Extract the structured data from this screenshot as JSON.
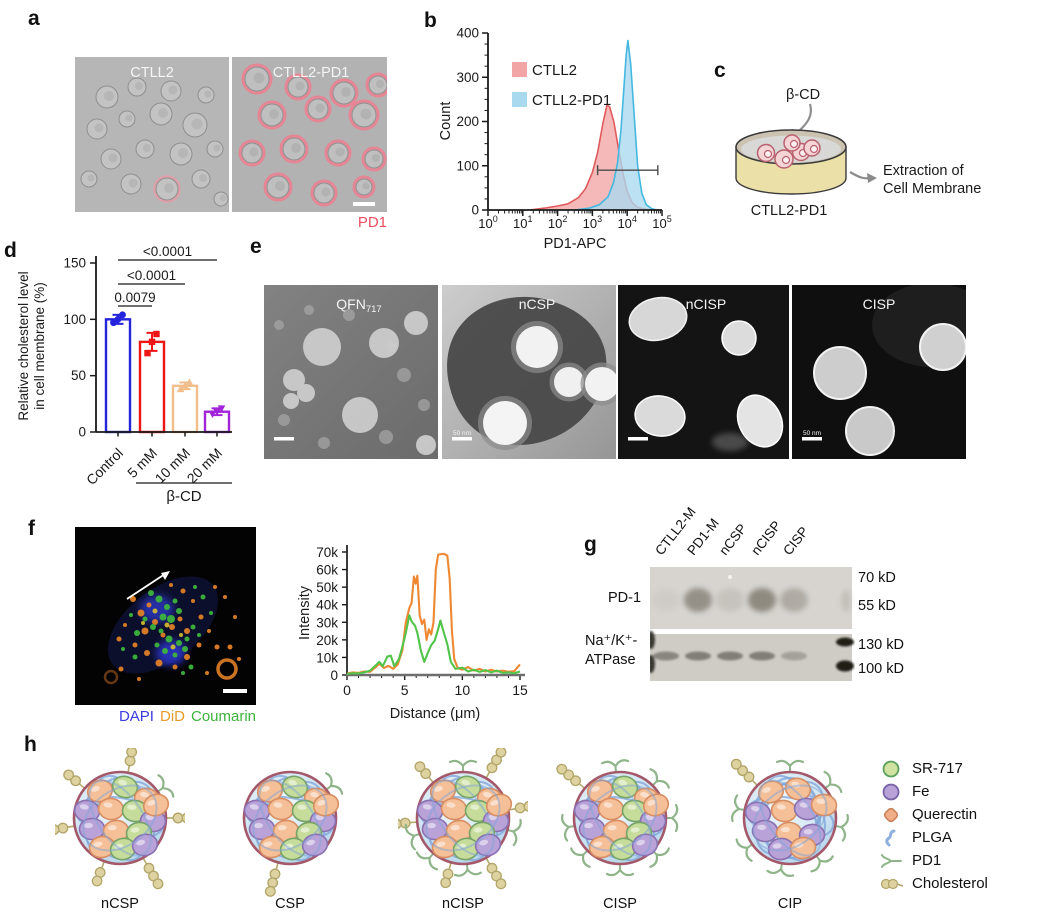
{
  "panels": {
    "a": {
      "label": "a",
      "images": [
        {
          "title": "CTLL2"
        },
        {
          "title": "CTLL2-PD1"
        }
      ],
      "caption": "PD1",
      "caption_color": "#ee4e60"
    },
    "b": {
      "label": "b"
    },
    "c": {
      "label": "c",
      "treatment": "β-CD",
      "dish": "CTLL2-PD1",
      "result_line1": "Extraction of",
      "result_line2": "Cell Membrane"
    },
    "d": {
      "label": "d"
    },
    "e": {
      "label": "e",
      "images": [
        {
          "title": "QFN",
          "title_sub": "717",
          "scale_label": ""
        },
        {
          "title": "nCSP",
          "title_sub": "",
          "scale_label": "50 nm"
        },
        {
          "title": "nCISP",
          "title_sub": "",
          "scale_label": ""
        },
        {
          "title": "CISP",
          "title_sub": "",
          "scale_label": "50 nm"
        }
      ]
    },
    "f": {
      "label": "f",
      "caption": [
        {
          "text": "DAPI",
          "color": "#3b3be0"
        },
        {
          "text": "DiD",
          "color": "#e69a28"
        },
        {
          "text": "Coumarin",
          "color": "#3cb43c"
        }
      ]
    },
    "g": {
      "label": "g",
      "lanes": [
        "CTLL2-M",
        "PD1-M",
        "nCSP",
        "nCISP",
        "CISP"
      ],
      "blots": [
        {
          "target": "PD-1",
          "markers": [
            "70 kD",
            "55 kD"
          ],
          "band_intensities": [
            0.05,
            0.5,
            0.12,
            0.55,
            0.3
          ]
        },
        {
          "target_line1": "Na⁺/K⁺-",
          "target_line2": "ATPase",
          "markers": [
            "130 kD",
            "100 kD"
          ],
          "band_intensities": [
            0.5,
            0.55,
            0.55,
            0.55,
            0.3
          ]
        }
      ]
    },
    "h": {
      "label": "h",
      "particles": [
        "nCSP",
        "CSP",
        "nCISP",
        "CISP",
        "CIP"
      ],
      "legend": [
        "SR-717",
        "Fe",
        "Querectin",
        "PLGA",
        "PD1",
        "Cholesterol"
      ]
    }
  },
  "chart_data": [
    {
      "id": "flow-histogram",
      "type": "area",
      "panel": "b",
      "xlabel": "PD1-APC",
      "ylabel": "Count",
      "x_scale": "log10",
      "xlim_log": [
        0,
        5
      ],
      "ylim": [
        0,
        400
      ],
      "yticks": [
        0,
        100,
        200,
        300,
        400
      ],
      "xtick_exponents": [
        0,
        1,
        2,
        3,
        4,
        5
      ],
      "legend_position": "upper-left",
      "series": [
        {
          "name": "CTLL2",
          "color_fill": "#f2a5a5",
          "color_line": "#e05a5e",
          "points_logx_count": [
            [
              1.2,
              0
            ],
            [
              1.6,
              4
            ],
            [
              2.0,
              9
            ],
            [
              2.3,
              14
            ],
            [
              2.6,
              28
            ],
            [
              2.8,
              48
            ],
            [
              3.0,
              85
            ],
            [
              3.15,
              130
            ],
            [
              3.3,
              195
            ],
            [
              3.42,
              238
            ],
            [
              3.5,
              232
            ],
            [
              3.62,
              198
            ],
            [
              3.75,
              138
            ],
            [
              3.88,
              82
            ],
            [
              4.0,
              42
            ],
            [
              4.15,
              16
            ],
            [
              4.3,
              6
            ],
            [
              4.5,
              2
            ],
            [
              4.7,
              0
            ]
          ]
        },
        {
          "name": "CTLL2-PD1",
          "color_fill": "#a9d9ee",
          "color_line": "#45b8e0",
          "points_logx_count": [
            [
              2.5,
              0
            ],
            [
              2.9,
              4
            ],
            [
              3.2,
              12
            ],
            [
              3.45,
              30
            ],
            [
              3.6,
              60
            ],
            [
              3.72,
              105
            ],
            [
              3.82,
              180
            ],
            [
              3.9,
              270
            ],
            [
              3.97,
              350
            ],
            [
              4.02,
              383
            ],
            [
              4.1,
              330
            ],
            [
              4.2,
              215
            ],
            [
              4.3,
              100
            ],
            [
              4.42,
              38
            ],
            [
              4.55,
              12
            ],
            [
              4.7,
              3
            ],
            [
              4.85,
              0
            ]
          ]
        }
      ],
      "gate": {
        "y_count": 90,
        "logx_from": 3.15,
        "logx_to": 4.88
      }
    },
    {
      "id": "cholesterol-bars",
      "type": "bar",
      "panel": "d",
      "categories": [
        "Control",
        "5 mM",
        "10 mM",
        "20 mM"
      ],
      "values": [
        100,
        80,
        41,
        18
      ],
      "errors": [
        4,
        8,
        3,
        3
      ],
      "points": [
        [
          97,
          100,
          104
        ],
        [
          70,
          80,
          87
        ],
        [
          38,
          41,
          44
        ],
        [
          16,
          18,
          21
        ]
      ],
      "bar_colors": [
        "#2424dd",
        "#ee1515",
        "#f2be8c",
        "#a224d8"
      ],
      "ylabel_line1": "Relative cholesterol level",
      "ylabel_line2": "in cell membrane (%)",
      "ylim": [
        0,
        150
      ],
      "yticks": [
        0,
        50,
        100,
        150
      ],
      "group_label": "β-CD",
      "significance": [
        {
          "from": 0,
          "to": 1,
          "label": "0.0079"
        },
        {
          "from": 0,
          "to": 2,
          "label": "<0.0001"
        },
        {
          "from": 0,
          "to": 3,
          "label": "<0.0001"
        }
      ]
    },
    {
      "id": "colocalization-profile",
      "type": "line",
      "panel": "f",
      "xlabel": "Distance (μm)",
      "ylabel": "Intensity",
      "xlim": [
        0,
        15
      ],
      "xticks": [
        0,
        5,
        10,
        15
      ],
      "ylim": [
        0,
        70000
      ],
      "ytick_labels": [
        "0",
        "10k",
        "20k",
        "30k",
        "40k",
        "50k",
        "60k",
        "70k"
      ],
      "series": [
        {
          "name": "DiD",
          "color": "#ef8832",
          "points": [
            [
              0,
              800
            ],
            [
              0.5,
              1500
            ],
            [
              1,
              1200
            ],
            [
              1.5,
              2000
            ],
            [
              2,
              1800
            ],
            [
              2.5,
              4500
            ],
            [
              2.8,
              6500
            ],
            [
              3.2,
              4000
            ],
            [
              3.6,
              5200
            ],
            [
              4,
              3500
            ],
            [
              4.4,
              6000
            ],
            [
              4.8,
              14000
            ],
            [
              5.1,
              30000
            ],
            [
              5.4,
              38000
            ],
            [
              5.6,
              41000
            ],
            [
              5.8,
              56000
            ],
            [
              5.95,
              52000
            ],
            [
              6.1,
              56500
            ],
            [
              6.3,
              34000
            ],
            [
              6.5,
              29000
            ],
            [
              6.7,
              31500
            ],
            [
              6.9,
              20000
            ],
            [
              7.1,
              26000
            ],
            [
              7.3,
              23000
            ],
            [
              7.5,
              30000
            ],
            [
              7.7,
              60000
            ],
            [
              7.9,
              68500
            ],
            [
              8.4,
              69000
            ],
            [
              8.7,
              68000
            ],
            [
              8.9,
              55000
            ],
            [
              9.1,
              25000
            ],
            [
              9.3,
              9000
            ],
            [
              9.6,
              4000
            ],
            [
              10,
              3000
            ],
            [
              10.5,
              4500
            ],
            [
              11,
              2500
            ],
            [
              11.5,
              3500
            ],
            [
              12,
              2000
            ],
            [
              12.5,
              3000
            ],
            [
              13,
              2000
            ],
            [
              13.5,
              2500
            ],
            [
              14,
              1800
            ],
            [
              14.5,
              2200
            ],
            [
              15,
              6000
            ]
          ]
        },
        {
          "name": "Coumarin",
          "color": "#52c44a",
          "points": [
            [
              0,
              600
            ],
            [
              0.5,
              1000
            ],
            [
              1,
              900
            ],
            [
              1.5,
              1500
            ],
            [
              2,
              2500
            ],
            [
              2.5,
              5500
            ],
            [
              2.8,
              7500
            ],
            [
              3.1,
              5000
            ],
            [
              3.5,
              10500
            ],
            [
              3.8,
              11000
            ],
            [
              4.1,
              5000
            ],
            [
              4.5,
              9000
            ],
            [
              4.8,
              16000
            ],
            [
              5.1,
              24000
            ],
            [
              5.4,
              34000
            ],
            [
              5.6,
              30500
            ],
            [
              5.9,
              28000
            ],
            [
              6.1,
              24000
            ],
            [
              6.4,
              14000
            ],
            [
              6.7,
              7500
            ],
            [
              7,
              12500
            ],
            [
              7.3,
              17000
            ],
            [
              7.6,
              19500
            ],
            [
              7.9,
              26000
            ],
            [
              8.1,
              31000
            ],
            [
              8.4,
              24000
            ],
            [
              8.7,
              17500
            ],
            [
              9,
              7500
            ],
            [
              9.4,
              3500
            ],
            [
              10,
              4200
            ],
            [
              10.5,
              2000
            ],
            [
              11,
              3000
            ],
            [
              11.5,
              1800
            ],
            [
              12,
              2800
            ],
            [
              12.5,
              1500
            ],
            [
              13,
              2500
            ],
            [
              13.5,
              1200
            ],
            [
              14,
              1500
            ],
            [
              14.5,
              1000
            ],
            [
              15,
              2000
            ]
          ]
        }
      ]
    }
  ]
}
